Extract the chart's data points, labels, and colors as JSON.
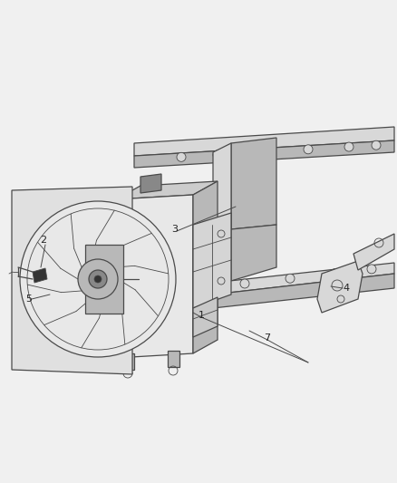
{
  "background_color": "#f0f0f0",
  "line_color": "#4a4a4a",
  "fill_light": "#d8d8d8",
  "fill_medium": "#b8b8b8",
  "fill_dark": "#888888",
  "fig_width": 4.38,
  "fig_height": 5.33,
  "dpi": 100,
  "label_fontsize": 8,
  "label_color": "#222222"
}
